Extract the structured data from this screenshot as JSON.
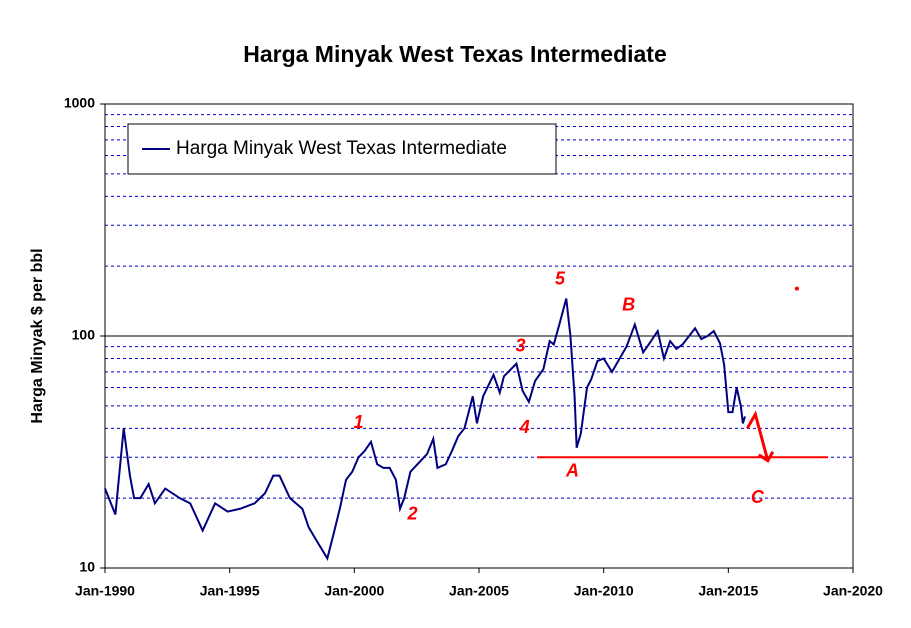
{
  "chart_data": {
    "type": "line",
    "title": "Harga Minyak West Texas Intermediate",
    "y_label": "Harga Minyak $ per bbl",
    "log_scale": true,
    "xlim": [
      "1990-01",
      "2020-01"
    ],
    "xticks": [
      {
        "value": "1990-01",
        "label": "Jan-1990"
      },
      {
        "value": "1995-01",
        "label": "Jan-1995"
      },
      {
        "value": "2000-01",
        "label": "Jan-2000"
      },
      {
        "value": "2005-01",
        "label": "Jan-2005"
      },
      {
        "value": "2010-01",
        "label": "Jan-2010"
      },
      {
        "value": "2015-01",
        "label": "Jan-2015"
      },
      {
        "value": "2020-01",
        "label": "Jan-2020"
      }
    ],
    "ylim": [
      10,
      1000
    ],
    "yticks": [
      10,
      100,
      1000
    ],
    "minor_grid": [
      20,
      30,
      40,
      50,
      60,
      70,
      80,
      90,
      200,
      300,
      400,
      500,
      600,
      700,
      800,
      900
    ],
    "legend": "top-left",
    "x": [
      "1990-01",
      "1990-06",
      "1990-10",
      "1991-01",
      "1991-03",
      "1991-06",
      "1991-10",
      "1992-01",
      "1992-06",
      "1993-01",
      "1993-06",
      "1993-12",
      "1994-06",
      "1994-12",
      "1995-06",
      "1996-01",
      "1996-06",
      "1996-10",
      "1997-01",
      "1997-06",
      "1997-12",
      "1998-03",
      "1998-06",
      "1998-12",
      "1999-03",
      "1999-06",
      "1999-09",
      "1999-12",
      "2000-03",
      "2000-06",
      "2000-09",
      "2000-12",
      "2001-03",
      "2001-06",
      "2001-09",
      "2001-11",
      "2002-01",
      "2002-04",
      "2002-09",
      "2002-12",
      "2003-03",
      "2003-05",
      "2003-09",
      "2003-12",
      "2004-03",
      "2004-06",
      "2004-10",
      "2004-12",
      "2005-03",
      "2005-08",
      "2005-11",
      "2006-01",
      "2006-07",
      "2006-10",
      "2007-01",
      "2007-04",
      "2007-08",
      "2007-11",
      "2008-01",
      "2008-04",
      "2008-07",
      "2008-09",
      "2008-11",
      "2008-12",
      "2009-02",
      "2009-05",
      "2009-07",
      "2009-10",
      "2010-01",
      "2010-05",
      "2010-08",
      "2010-12",
      "2011-04",
      "2011-08",
      "2011-10",
      "2012-03",
      "2012-06",
      "2012-09",
      "2012-12",
      "2013-03",
      "2013-09",
      "2013-12",
      "2014-03",
      "2014-06",
      "2014-09",
      "2014-11",
      "2015-01",
      "2015-03",
      "2015-05",
      "2015-07",
      "2015-08",
      "2015-09"
    ],
    "series": [
      {
        "name": "Harga Minyak West Texas Intermediate",
        "color": "#000080",
        "values": [
          22,
          17,
          40,
          25,
          20,
          20,
          23,
          19,
          22,
          20,
          19,
          14.5,
          19,
          17.5,
          18,
          19,
          21,
          25,
          25,
          20,
          18,
          15,
          13.5,
          11,
          14,
          18,
          24,
          26,
          30,
          32,
          35,
          28,
          27,
          27,
          24,
          18,
          20,
          26,
          29,
          31,
          36,
          27,
          28,
          32,
          37,
          40,
          55,
          42,
          55,
          68,
          57,
          67,
          76,
          58,
          52,
          64,
          72,
          95,
          92,
          115,
          145,
          100,
          55,
          33,
          38,
          60,
          65,
          78,
          80,
          70,
          78,
          90,
          112,
          85,
          90,
          105,
          80,
          95,
          88,
          92,
          108,
          97,
          100,
          105,
          93,
          75,
          47,
          47,
          60,
          50,
          42,
          45
        ]
      }
    ],
    "annotations": [
      {
        "text": "1",
        "x": "2000-03",
        "y": 42
      },
      {
        "text": "2",
        "x": "2002-05",
        "y": 17
      },
      {
        "text": "3",
        "x": "2006-09",
        "y": 90
      },
      {
        "text": "4",
        "x": "2006-11",
        "y": 40
      },
      {
        "text": "5",
        "x": "2008-04",
        "y": 175
      },
      {
        "text": "A",
        "x": "2008-10",
        "y": 26
      },
      {
        "text": "B",
        "x": "2011-01",
        "y": 135
      },
      {
        "text": "C",
        "x": "2016-03",
        "y": 20
      }
    ],
    "support_line": {
      "y": 30,
      "x": [
        "2007-05",
        "2019-01"
      ]
    },
    "arrow": {
      "x": [
        "2016-02",
        "2016-08"
      ],
      "y": [
        46,
        29
      ]
    },
    "marker": {
      "x": "2017-10",
      "y": 160
    },
    "annotation_color": "#ff0000"
  }
}
